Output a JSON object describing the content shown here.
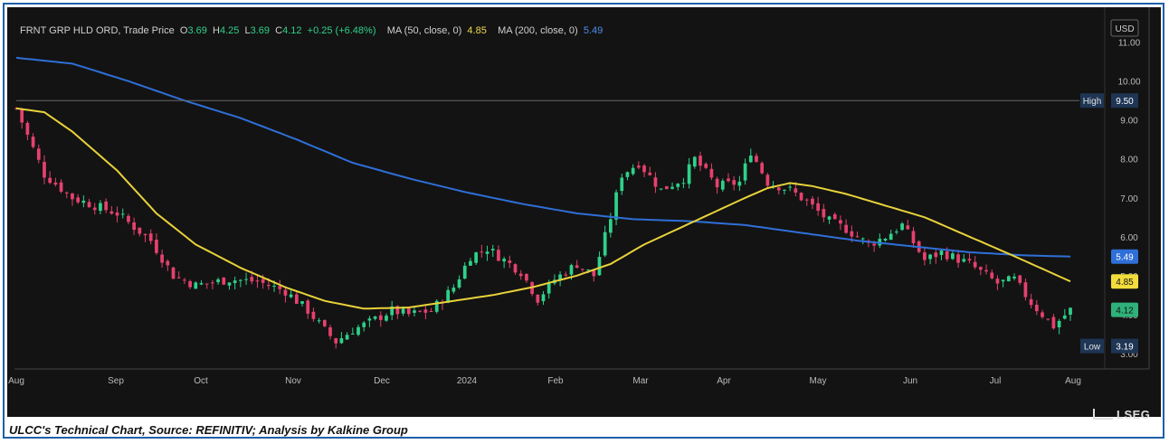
{
  "legend": {
    "name": "FRNT GRP HLD ORD, Trade Price",
    "o_label": "O",
    "o": "3.69",
    "h_label": "H",
    "h": "4.25",
    "l_label": "L",
    "l": "3.69",
    "c_label": "C",
    "c": "4.12",
    "change": "+0.25 (+6.48%)",
    "ma50_label": "MA (50, close, 0)",
    "ma50": "4.85",
    "ma200_label": "MA (200, close, 0)",
    "ma200": "5.49"
  },
  "currency": "USD",
  "caption": "ULCC's Technical Chart, Source: REFINITIV; Analysis by Kalkine Group",
  "logo": "LSEG",
  "colors": {
    "background": "#131313",
    "up": "#2fd18a",
    "down": "#e5416e",
    "ma50": "#e8d23a",
    "ma200": "#2f6fd8",
    "high_low_badge": "#1e3554"
  },
  "chart_data": {
    "type": "candlestick",
    "x_tick_labels": [
      "Aug",
      "Sep",
      "Oct",
      "Nov",
      "Dec",
      "2024",
      "Feb",
      "Mar",
      "Apr",
      "May",
      "Jun",
      "Jul",
      "Aug"
    ],
    "y_tick_labels": [
      "11.00",
      "10.00",
      "9.00",
      "8.00",
      "7.00",
      "6.00",
      "5.00",
      "4.00",
      "3.00"
    ],
    "ylim": [
      2.6,
      11.9
    ],
    "grid": false,
    "markers": [
      {
        "label": "High",
        "value": "9.50"
      },
      {
        "label": "Low",
        "value": "3.19"
      }
    ],
    "last_values": [
      {
        "series": "ma200",
        "value": "5.49"
      },
      {
        "series": "ma50",
        "value": "4.85"
      },
      {
        "series": "close",
        "value": "4.12"
      }
    ],
    "close_anchors": [
      [
        0,
        9.3
      ],
      [
        2,
        8.6
      ],
      [
        5,
        7.6
      ],
      [
        10,
        7.0
      ],
      [
        18,
        6.6
      ],
      [
        24,
        5.9
      ],
      [
        28,
        5.0
      ],
      [
        32,
        4.75
      ],
      [
        38,
        4.9
      ],
      [
        43,
        4.85
      ],
      [
        48,
        4.6
      ],
      [
        52,
        4.1
      ],
      [
        55,
        3.6
      ],
      [
        57,
        3.3
      ],
      [
        60,
        3.6
      ],
      [
        63,
        3.8
      ],
      [
        67,
        4.1
      ],
      [
        70,
        4.0
      ],
      [
        74,
        4.1
      ],
      [
        78,
        4.7
      ],
      [
        81,
        5.5
      ],
      [
        84,
        5.7
      ],
      [
        87,
        5.4
      ],
      [
        90,
        5.1
      ],
      [
        93,
        4.4
      ],
      [
        96,
        4.9
      ],
      [
        100,
        5.3
      ],
      [
        103,
        5.0
      ],
      [
        106,
        6.5
      ],
      [
        108,
        7.6
      ],
      [
        111,
        7.9
      ],
      [
        115,
        7.2
      ],
      [
        119,
        7.5
      ],
      [
        121,
        8.0
      ],
      [
        125,
        7.3
      ],
      [
        129,
        7.4
      ],
      [
        131,
        8.2
      ],
      [
        134,
        7.4
      ],
      [
        138,
        7.2
      ],
      [
        141,
        6.9
      ],
      [
        145,
        6.4
      ],
      [
        148,
        6.2
      ],
      [
        152,
        5.8
      ],
      [
        155,
        6.0
      ],
      [
        158,
        6.3
      ],
      [
        162,
        5.4
      ],
      [
        165,
        5.6
      ],
      [
        170,
        5.3
      ],
      [
        175,
        4.8
      ],
      [
        178,
        4.9
      ],
      [
        181,
        4.3
      ],
      [
        185,
        3.7
      ],
      [
        188,
        4.12
      ]
    ],
    "ma50": [
      [
        0,
        9.3
      ],
      [
        5,
        9.2
      ],
      [
        10,
        8.7
      ],
      [
        18,
        7.7
      ],
      [
        25,
        6.6
      ],
      [
        32,
        5.8
      ],
      [
        40,
        5.2
      ],
      [
        48,
        4.7
      ],
      [
        55,
        4.35
      ],
      [
        62,
        4.15
      ],
      [
        70,
        4.18
      ],
      [
        78,
        4.35
      ],
      [
        85,
        4.5
      ],
      [
        92,
        4.7
      ],
      [
        100,
        5.0
      ],
      [
        106,
        5.3
      ],
      [
        112,
        5.8
      ],
      [
        118,
        6.2
      ],
      [
        124,
        6.6
      ],
      [
        130,
        7.0
      ],
      [
        134,
        7.25
      ],
      [
        138,
        7.38
      ],
      [
        142,
        7.3
      ],
      [
        148,
        7.1
      ],
      [
        155,
        6.8
      ],
      [
        162,
        6.5
      ],
      [
        170,
        6.0
      ],
      [
        178,
        5.5
      ],
      [
        188,
        4.85
      ]
    ],
    "ma200": [
      [
        0,
        10.6
      ],
      [
        10,
        10.45
      ],
      [
        20,
        10.0
      ],
      [
        30,
        9.5
      ],
      [
        40,
        9.05
      ],
      [
        50,
        8.5
      ],
      [
        60,
        7.9
      ],
      [
        70,
        7.5
      ],
      [
        80,
        7.15
      ],
      [
        90,
        6.85
      ],
      [
        100,
        6.6
      ],
      [
        110,
        6.45
      ],
      [
        120,
        6.4
      ],
      [
        130,
        6.3
      ],
      [
        140,
        6.1
      ],
      [
        150,
        5.9
      ],
      [
        160,
        5.75
      ],
      [
        170,
        5.6
      ],
      [
        180,
        5.52
      ],
      [
        188,
        5.49
      ]
    ]
  }
}
